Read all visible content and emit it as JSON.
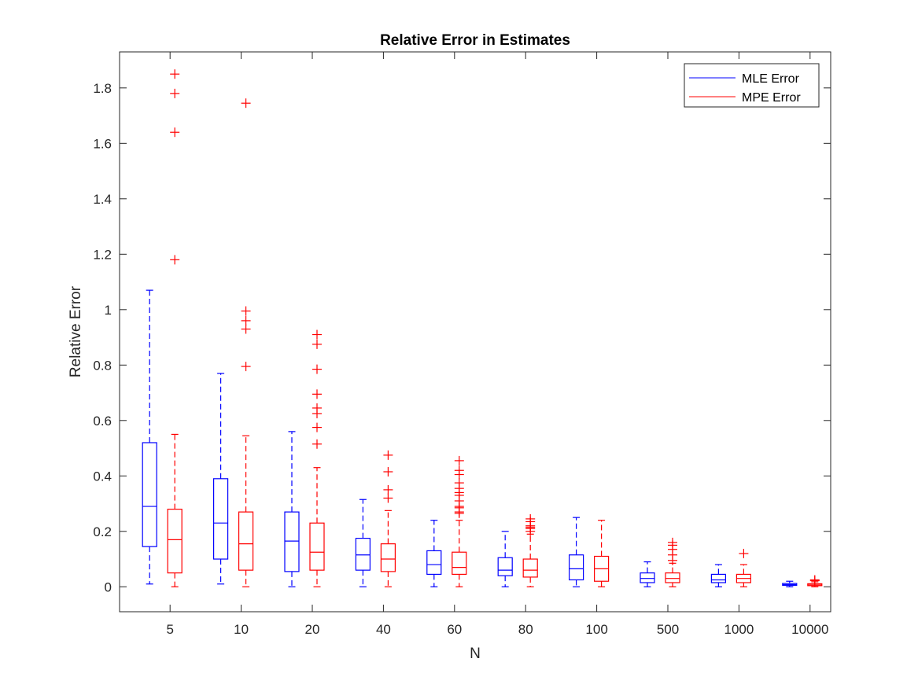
{
  "chart_data": {
    "type": "box",
    "title": "Relative Error in Estimates",
    "xlabel": "N",
    "ylabel": "Relative Error",
    "categories": [
      "5",
      "10",
      "20",
      "40",
      "60",
      "80",
      "100",
      "500",
      "1000",
      "10000"
    ],
    "ylim": [
      -0.09,
      1.93
    ],
    "yticks": [
      0,
      0.2,
      0.4,
      0.6,
      0.8,
      1,
      1.2,
      1.4,
      1.6,
      1.8
    ],
    "ytick_labels": [
      "0",
      "0.2",
      "0.4",
      "0.6",
      "0.8",
      "1",
      "1.2",
      "1.4",
      "1.6",
      "1.8"
    ],
    "grid": false,
    "legend": {
      "position": "top-right"
    },
    "series": [
      {
        "name": "MLE Error",
        "color": "#0000ff",
        "boxes": [
          {
            "whisker_low": 0.01,
            "q1": 0.145,
            "median": 0.29,
            "q3": 0.52,
            "whisker_high": 1.07,
            "outliers": []
          },
          {
            "whisker_low": 0.01,
            "q1": 0.1,
            "median": 0.23,
            "q3": 0.39,
            "whisker_high": 0.77,
            "outliers": []
          },
          {
            "whisker_low": 0.0,
            "q1": 0.055,
            "median": 0.165,
            "q3": 0.27,
            "whisker_high": 0.56,
            "outliers": []
          },
          {
            "whisker_low": 0.0,
            "q1": 0.06,
            "median": 0.115,
            "q3": 0.175,
            "whisker_high": 0.315,
            "outliers": []
          },
          {
            "whisker_low": 0.0,
            "q1": 0.045,
            "median": 0.08,
            "q3": 0.13,
            "whisker_high": 0.24,
            "outliers": []
          },
          {
            "whisker_low": 0.0,
            "q1": 0.04,
            "median": 0.06,
            "q3": 0.105,
            "whisker_high": 0.2,
            "outliers": []
          },
          {
            "whisker_low": 0.0,
            "q1": 0.025,
            "median": 0.065,
            "q3": 0.115,
            "whisker_high": 0.25,
            "outliers": []
          },
          {
            "whisker_low": 0.0,
            "q1": 0.015,
            "median": 0.03,
            "q3": 0.05,
            "whisker_high": 0.09,
            "outliers": []
          },
          {
            "whisker_low": 0.0,
            "q1": 0.015,
            "median": 0.025,
            "q3": 0.045,
            "whisker_high": 0.08,
            "outliers": []
          },
          {
            "whisker_low": 0.0,
            "q1": 0.005,
            "median": 0.008,
            "q3": 0.012,
            "whisker_high": 0.02,
            "outliers": []
          }
        ]
      },
      {
        "name": "MPE Error",
        "color": "#ff0000",
        "boxes": [
          {
            "whisker_low": 0.0,
            "q1": 0.05,
            "median": 0.17,
            "q3": 0.28,
            "whisker_high": 0.55,
            "outliers": [
              1.18,
              1.64,
              1.78,
              1.85
            ]
          },
          {
            "whisker_low": 0.0,
            "q1": 0.06,
            "median": 0.155,
            "q3": 0.27,
            "whisker_high": 0.545,
            "outliers": [
              0.795,
              0.93,
              0.96,
              0.995,
              1.745
            ]
          },
          {
            "whisker_low": 0.0,
            "q1": 0.06,
            "median": 0.125,
            "q3": 0.23,
            "whisker_high": 0.43,
            "outliers": [
              0.515,
              0.575,
              0.625,
              0.645,
              0.695,
              0.785,
              0.875,
              0.91
            ]
          },
          {
            "whisker_low": 0.0,
            "q1": 0.055,
            "median": 0.1,
            "q3": 0.155,
            "whisker_high": 0.275,
            "outliers": [
              0.32,
              0.35,
              0.415,
              0.475
            ]
          },
          {
            "whisker_low": 0.0,
            "q1": 0.045,
            "median": 0.07,
            "q3": 0.125,
            "whisker_high": 0.24,
            "outliers": [
              0.265,
              0.27,
              0.285,
              0.29,
              0.31,
              0.33,
              0.34,
              0.355,
              0.375,
              0.405,
              0.42,
              0.455
            ]
          },
          {
            "whisker_low": 0.0,
            "q1": 0.035,
            "median": 0.06,
            "q3": 0.1,
            "whisker_high": 0.19,
            "outliers": [
              0.2,
              0.21,
              0.215,
              0.22,
              0.235,
              0.245
            ]
          },
          {
            "whisker_low": 0.0,
            "q1": 0.02,
            "median": 0.065,
            "q3": 0.11,
            "whisker_high": 0.24,
            "outliers": []
          },
          {
            "whisker_low": 0.0,
            "q1": 0.015,
            "median": 0.03,
            "q3": 0.05,
            "whisker_high": 0.085,
            "outliers": [
              0.095,
              0.115,
              0.135,
              0.15,
              0.16
            ]
          },
          {
            "whisker_low": 0.0,
            "q1": 0.015,
            "median": 0.03,
            "q3": 0.045,
            "whisker_high": 0.08,
            "outliers": [
              0.12
            ]
          },
          {
            "whisker_low": 0.0,
            "q1": 0.004,
            "median": 0.007,
            "q3": 0.011,
            "whisker_high": 0.018,
            "outliers": [
              0.022,
              0.025
            ]
          }
        ]
      }
    ]
  }
}
